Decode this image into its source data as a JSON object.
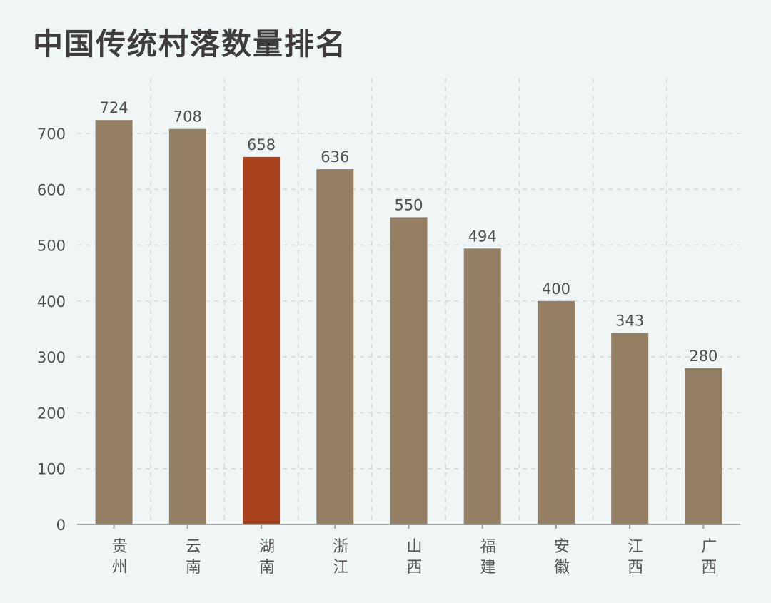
{
  "chart_data": {
    "type": "bar",
    "title": "中国传统村落数量排名",
    "xlabel": "",
    "ylabel": "",
    "categories": [
      "贵州",
      "云南",
      "湖南",
      "浙江",
      "山西",
      "福建",
      "安徽",
      "江西",
      "广西"
    ],
    "values": [
      724,
      708,
      658,
      636,
      550,
      494,
      400,
      343,
      280
    ],
    "ylim": [
      0,
      700
    ],
    "yticks": [
      0,
      100,
      200,
      300,
      400,
      500,
      600,
      700
    ],
    "grid": true,
    "highlight_index": 2,
    "colors": {
      "bar": "#957f64",
      "highlight": "#a8411d",
      "grid": "#d4d9d9",
      "axis": "#9aa0a0"
    }
  }
}
